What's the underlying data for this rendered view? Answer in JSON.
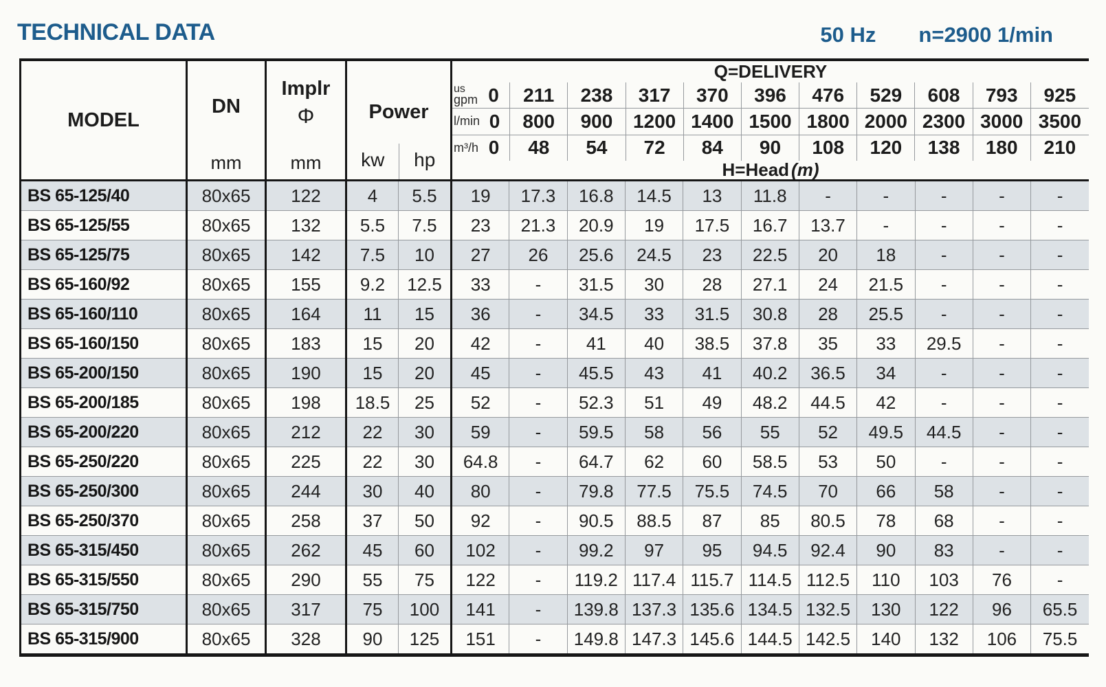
{
  "page": {
    "title": "TECHNICAL DATA",
    "frequency": "50 Hz",
    "speed": "n=2900 1/min"
  },
  "colors": {
    "accent_blue": "#1d5c8c",
    "row_shade": "#dde2e6",
    "grid_line": "#95999d",
    "border_black": "#161616"
  },
  "table": {
    "columns": {
      "model_label": "MODEL",
      "dn_label": "DN",
      "dn_unit": "mm",
      "impeller_label": "Implr",
      "impeller_symbol": "Φ",
      "impeller_unit": "mm",
      "power_label": "Power",
      "power_unit_kw": "kw",
      "power_unit_hp": "hp"
    },
    "delivery": {
      "title": "Q=DELIVERY",
      "head_label": "H=Head",
      "head_unit": "(m)",
      "unit_rows": [
        {
          "unit_top": "us",
          "unit": "gpm",
          "values": [
            "0",
            "211",
            "238",
            "317",
            "370",
            "396",
            "476",
            "529",
            "608",
            "793",
            "925"
          ]
        },
        {
          "unit_top": "",
          "unit": "l/min",
          "values": [
            "0",
            "800",
            "900",
            "1200",
            "1400",
            "1500",
            "1800",
            "2000",
            "2300",
            "3000",
            "3500"
          ]
        },
        {
          "unit_top": "",
          "unit": "m³/h",
          "values": [
            "0",
            "48",
            "54",
            "72",
            "84",
            "90",
            "108",
            "120",
            "138",
            "180",
            "210"
          ]
        }
      ]
    },
    "rows": [
      {
        "model": "BS 65-125/40",
        "dn": "80x65",
        "impeller": "122",
        "kw": "4",
        "hp": "5.5",
        "head": [
          "19",
          "17.3",
          "16.8",
          "14.5",
          "13",
          "11.8",
          "-",
          "-",
          "-",
          "-",
          "-"
        ]
      },
      {
        "model": "BS 65-125/55",
        "dn": "80x65",
        "impeller": "132",
        "kw": "5.5",
        "hp": "7.5",
        "head": [
          "23",
          "21.3",
          "20.9",
          "19",
          "17.5",
          "16.7",
          "13.7",
          "-",
          "-",
          "-",
          "-"
        ]
      },
      {
        "model": "BS 65-125/75",
        "dn": "80x65",
        "impeller": "142",
        "kw": "7.5",
        "hp": "10",
        "head": [
          "27",
          "26",
          "25.6",
          "24.5",
          "23",
          "22.5",
          "20",
          "18",
          "-",
          "-",
          "-"
        ]
      },
      {
        "model": "BS 65-160/92",
        "dn": "80x65",
        "impeller": "155",
        "kw": "9.2",
        "hp": "12.5",
        "head": [
          "33",
          "-",
          "31.5",
          "30",
          "28",
          "27.1",
          "24",
          "21.5",
          "-",
          "-",
          "-"
        ]
      },
      {
        "model": "BS 65-160/110",
        "dn": "80x65",
        "impeller": "164",
        "kw": "11",
        "hp": "15",
        "head": [
          "36",
          "-",
          "34.5",
          "33",
          "31.5",
          "30.8",
          "28",
          "25.5",
          "-",
          "-",
          "-"
        ]
      },
      {
        "model": "BS 65-160/150",
        "dn": "80x65",
        "impeller": "183",
        "kw": "15",
        "hp": "20",
        "head": [
          "42",
          "-",
          "41",
          "40",
          "38.5",
          "37.8",
          "35",
          "33",
          "29.5",
          "-",
          "-"
        ]
      },
      {
        "model": "BS 65-200/150",
        "dn": "80x65",
        "impeller": "190",
        "kw": "15",
        "hp": "20",
        "head": [
          "45",
          "-",
          "45.5",
          "43",
          "41",
          "40.2",
          "36.5",
          "34",
          "-",
          "-",
          "-"
        ]
      },
      {
        "model": "BS 65-200/185",
        "dn": "80x65",
        "impeller": "198",
        "kw": "18.5",
        "hp": "25",
        "head": [
          "52",
          "-",
          "52.3",
          "51",
          "49",
          "48.2",
          "44.5",
          "42",
          "-",
          "-",
          "-"
        ]
      },
      {
        "model": "BS 65-200/220",
        "dn": "80x65",
        "impeller": "212",
        "kw": "22",
        "hp": "30",
        "head": [
          "59",
          "-",
          "59.5",
          "58",
          "56",
          "55",
          "52",
          "49.5",
          "44.5",
          "-",
          "-"
        ]
      },
      {
        "model": "BS 65-250/220",
        "dn": "80x65",
        "impeller": "225",
        "kw": "22",
        "hp": "30",
        "head": [
          "64.8",
          "-",
          "64.7",
          "62",
          "60",
          "58.5",
          "53",
          "50",
          "-",
          "-",
          "-"
        ]
      },
      {
        "model": "BS 65-250/300",
        "dn": "80x65",
        "impeller": "244",
        "kw": "30",
        "hp": "40",
        "head": [
          "80",
          "-",
          "79.8",
          "77.5",
          "75.5",
          "74.5",
          "70",
          "66",
          "58",
          "-",
          "-"
        ]
      },
      {
        "model": "BS 65-250/370",
        "dn": "80x65",
        "impeller": "258",
        "kw": "37",
        "hp": "50",
        "head": [
          "92",
          "-",
          "90.5",
          "88.5",
          "87",
          "85",
          "80.5",
          "78",
          "68",
          "-",
          "-"
        ]
      },
      {
        "model": "BS 65-315/450",
        "dn": "80x65",
        "impeller": "262",
        "kw": "45",
        "hp": "60",
        "head": [
          "102",
          "-",
          "99.2",
          "97",
          "95",
          "94.5",
          "92.4",
          "90",
          "83",
          "-",
          "-"
        ]
      },
      {
        "model": "BS 65-315/550",
        "dn": "80x65",
        "impeller": "290",
        "kw": "55",
        "hp": "75",
        "head": [
          "122",
          "-",
          "119.2",
          "117.4",
          "115.7",
          "114.5",
          "112.5",
          "110",
          "103",
          "76",
          "-"
        ]
      },
      {
        "model": "BS 65-315/750",
        "dn": "80x65",
        "impeller": "317",
        "kw": "75",
        "hp": "100",
        "head": [
          "141",
          "-",
          "139.8",
          "137.3",
          "135.6",
          "134.5",
          "132.5",
          "130",
          "122",
          "96",
          "65.5"
        ]
      },
      {
        "model": "BS 65-315/900",
        "dn": "80x65",
        "impeller": "328",
        "kw": "90",
        "hp": "125",
        "head": [
          "151",
          "-",
          "149.8",
          "147.3",
          "145.6",
          "144.5",
          "142.5",
          "140",
          "132",
          "106",
          "75.5"
        ]
      }
    ]
  }
}
